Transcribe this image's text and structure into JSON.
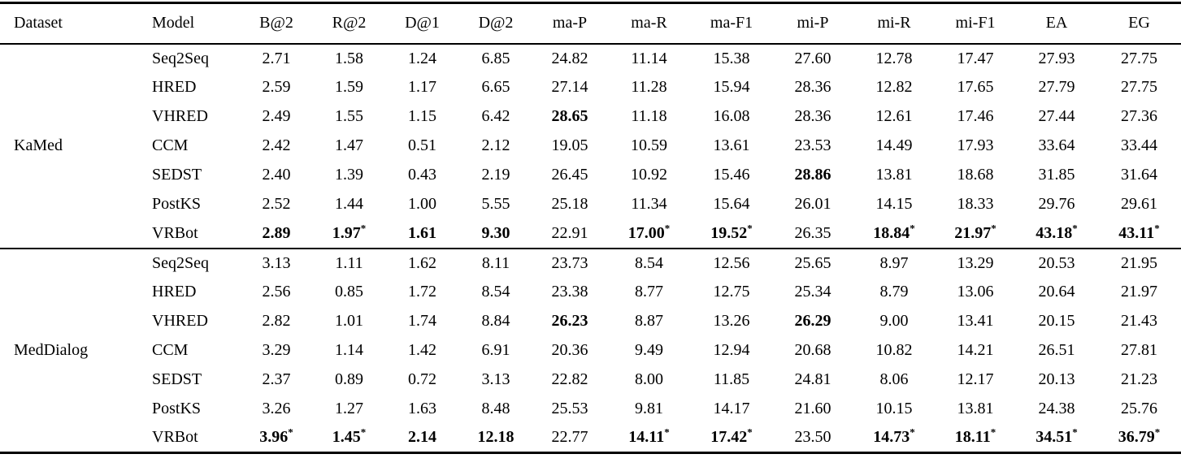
{
  "table": {
    "columns": [
      "Dataset",
      "Model",
      "B@2",
      "R@2",
      "D@1",
      "D@2",
      "ma-P",
      "ma-R",
      "ma-F1",
      "mi-P",
      "mi-R",
      "mi-F1",
      "EA",
      "EG"
    ],
    "text_color": "#000000",
    "background_color": "#ffffff",
    "sections": [
      {
        "dataset": "KaMed",
        "rows": [
          {
            "model": "Seq2Seq",
            "cells": [
              {
                "t": "2.71"
              },
              {
                "t": "1.58"
              },
              {
                "t": "1.24"
              },
              {
                "t": "6.85"
              },
              {
                "t": "24.82"
              },
              {
                "t": "11.14"
              },
              {
                "t": "15.38"
              },
              {
                "t": "27.60"
              },
              {
                "t": "12.78"
              },
              {
                "t": "17.47"
              },
              {
                "t": "27.93"
              },
              {
                "t": "27.75"
              }
            ]
          },
          {
            "model": "HRED",
            "cells": [
              {
                "t": "2.59"
              },
              {
                "t": "1.59"
              },
              {
                "t": "1.17"
              },
              {
                "t": "6.65"
              },
              {
                "t": "27.14"
              },
              {
                "t": "11.28"
              },
              {
                "t": "15.94"
              },
              {
                "t": "28.36"
              },
              {
                "t": "12.82"
              },
              {
                "t": "17.65"
              },
              {
                "t": "27.79"
              },
              {
                "t": "27.75"
              }
            ]
          },
          {
            "model": "VHRED",
            "cells": [
              {
                "t": "2.49"
              },
              {
                "t": "1.55"
              },
              {
                "t": "1.15"
              },
              {
                "t": "6.42"
              },
              {
                "t": "28.65",
                "bold": true
              },
              {
                "t": "11.18"
              },
              {
                "t": "16.08"
              },
              {
                "t": "28.36"
              },
              {
                "t": "12.61"
              },
              {
                "t": "17.46"
              },
              {
                "t": "27.44"
              },
              {
                "t": "27.36"
              }
            ]
          },
          {
            "model": "CCM",
            "cells": [
              {
                "t": "2.42"
              },
              {
                "t": "1.47"
              },
              {
                "t": "0.51"
              },
              {
                "t": "2.12"
              },
              {
                "t": "19.05"
              },
              {
                "t": "10.59"
              },
              {
                "t": "13.61"
              },
              {
                "t": "23.53"
              },
              {
                "t": "14.49"
              },
              {
                "t": "17.93"
              },
              {
                "t": "33.64"
              },
              {
                "t": "33.44"
              }
            ]
          },
          {
            "model": "SEDST",
            "cells": [
              {
                "t": "2.40"
              },
              {
                "t": "1.39"
              },
              {
                "t": "0.43"
              },
              {
                "t": "2.19"
              },
              {
                "t": "26.45"
              },
              {
                "t": "10.92"
              },
              {
                "t": "15.46"
              },
              {
                "t": "28.86",
                "bold": true
              },
              {
                "t": "13.81"
              },
              {
                "t": "18.68"
              },
              {
                "t": "31.85"
              },
              {
                "t": "31.64"
              }
            ]
          },
          {
            "model": "PostKS",
            "cells": [
              {
                "t": "2.52"
              },
              {
                "t": "1.44"
              },
              {
                "t": "1.00"
              },
              {
                "t": "5.55"
              },
              {
                "t": "25.18"
              },
              {
                "t": "11.34"
              },
              {
                "t": "15.64"
              },
              {
                "t": "26.01"
              },
              {
                "t": "14.15"
              },
              {
                "t": "18.33"
              },
              {
                "t": "29.76"
              },
              {
                "t": "29.61"
              }
            ]
          },
          {
            "model": "VRBot",
            "cells": [
              {
                "t": "2.89",
                "bold": true
              },
              {
                "t": "1.97",
                "bold": true,
                "star": true
              },
              {
                "t": "1.61",
                "bold": true
              },
              {
                "t": "9.30",
                "bold": true
              },
              {
                "t": "22.91"
              },
              {
                "t": "17.00",
                "bold": true,
                "star": true
              },
              {
                "t": "19.52",
                "bold": true,
                "star": true
              },
              {
                "t": "26.35"
              },
              {
                "t": "18.84",
                "bold": true,
                "star": true
              },
              {
                "t": "21.97",
                "bold": true,
                "star": true
              },
              {
                "t": "43.18",
                "bold": true,
                "star": true
              },
              {
                "t": "43.11",
                "bold": true,
                "star": true
              }
            ]
          }
        ]
      },
      {
        "dataset": "MedDialog",
        "rows": [
          {
            "model": "Seq2Seq",
            "cells": [
              {
                "t": "3.13"
              },
              {
                "t": "1.11"
              },
              {
                "t": "1.62"
              },
              {
                "t": "8.11"
              },
              {
                "t": "23.73"
              },
              {
                "t": "8.54"
              },
              {
                "t": "12.56"
              },
              {
                "t": "25.65"
              },
              {
                "t": "8.97"
              },
              {
                "t": "13.29"
              },
              {
                "t": "20.53"
              },
              {
                "t": "21.95"
              }
            ]
          },
          {
            "model": "HRED",
            "cells": [
              {
                "t": "2.56"
              },
              {
                "t": "0.85"
              },
              {
                "t": "1.72"
              },
              {
                "t": "8.54"
              },
              {
                "t": "23.38"
              },
              {
                "t": "8.77"
              },
              {
                "t": "12.75"
              },
              {
                "t": "25.34"
              },
              {
                "t": "8.79"
              },
              {
                "t": "13.06"
              },
              {
                "t": "20.64"
              },
              {
                "t": "21.97"
              }
            ]
          },
          {
            "model": "VHRED",
            "cells": [
              {
                "t": "2.82"
              },
              {
                "t": "1.01"
              },
              {
                "t": "1.74"
              },
              {
                "t": "8.84"
              },
              {
                "t": "26.23",
                "bold": true
              },
              {
                "t": "8.87"
              },
              {
                "t": "13.26"
              },
              {
                "t": "26.29",
                "bold": true
              },
              {
                "t": "9.00"
              },
              {
                "t": "13.41"
              },
              {
                "t": "20.15"
              },
              {
                "t": "21.43"
              }
            ]
          },
          {
            "model": "CCM",
            "cells": [
              {
                "t": "3.29"
              },
              {
                "t": "1.14"
              },
              {
                "t": "1.42"
              },
              {
                "t": "6.91"
              },
              {
                "t": "20.36"
              },
              {
                "t": "9.49"
              },
              {
                "t": "12.94"
              },
              {
                "t": "20.68"
              },
              {
                "t": "10.82"
              },
              {
                "t": "14.21"
              },
              {
                "t": "26.51"
              },
              {
                "t": "27.81"
              }
            ]
          },
          {
            "model": "SEDST",
            "cells": [
              {
                "t": "2.37"
              },
              {
                "t": "0.89"
              },
              {
                "t": "0.72"
              },
              {
                "t": "3.13"
              },
              {
                "t": "22.82"
              },
              {
                "t": "8.00"
              },
              {
                "t": "11.85"
              },
              {
                "t": "24.81"
              },
              {
                "t": "8.06"
              },
              {
                "t": "12.17"
              },
              {
                "t": "20.13"
              },
              {
                "t": "21.23"
              }
            ]
          },
          {
            "model": "PostKS",
            "cells": [
              {
                "t": "3.26"
              },
              {
                "t": "1.27"
              },
              {
                "t": "1.63"
              },
              {
                "t": "8.48"
              },
              {
                "t": "25.53"
              },
              {
                "t": "9.81"
              },
              {
                "t": "14.17"
              },
              {
                "t": "21.60"
              },
              {
                "t": "10.15"
              },
              {
                "t": "13.81"
              },
              {
                "t": "24.38"
              },
              {
                "t": "25.76"
              }
            ]
          },
          {
            "model": "VRBot",
            "cells": [
              {
                "t": "3.96",
                "bold": true,
                "star": true
              },
              {
                "t": "1.45",
                "bold": true,
                "star": true
              },
              {
                "t": "2.14",
                "bold": true
              },
              {
                "t": "12.18",
                "bold": true
              },
              {
                "t": "22.77"
              },
              {
                "t": "14.11",
                "bold": true,
                "star": true
              },
              {
                "t": "17.42",
                "bold": true,
                "star": true
              },
              {
                "t": "23.50"
              },
              {
                "t": "14.73",
                "bold": true,
                "star": true
              },
              {
                "t": "18.11",
                "bold": true,
                "star": true
              },
              {
                "t": "34.51",
                "bold": true,
                "star": true
              },
              {
                "t": "36.79",
                "bold": true,
                "star": true
              }
            ]
          }
        ]
      }
    ]
  }
}
